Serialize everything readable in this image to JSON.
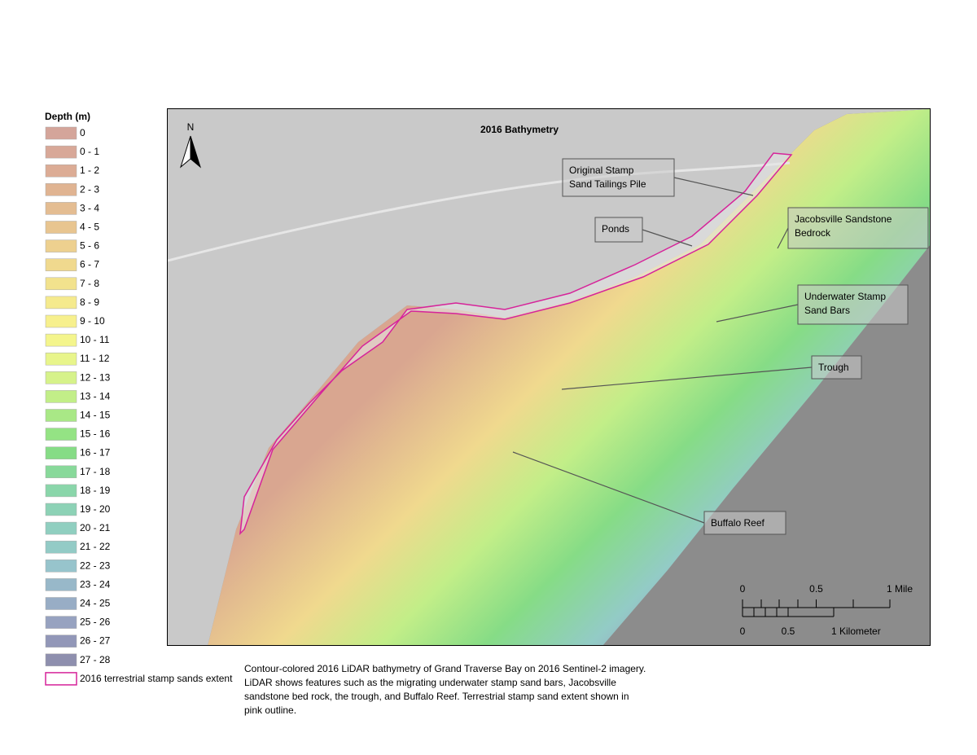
{
  "legend": {
    "title": "Depth (m)",
    "items": [
      {
        "label": "0",
        "color": "#d4a59a"
      },
      {
        "label": "0 - 1",
        "color": "#d8a898"
      },
      {
        "label": "1 - 2",
        "color": "#dcac95"
      },
      {
        "label": "2 - 3",
        "color": "#e0b492"
      },
      {
        "label": "3 - 4",
        "color": "#e4bd92"
      },
      {
        "label": "4 - 5",
        "color": "#e8c590"
      },
      {
        "label": "5 - 6",
        "color": "#edd08f"
      },
      {
        "label": "6 - 7",
        "color": "#f0d98e"
      },
      {
        "label": "7 - 8",
        "color": "#f2e28d"
      },
      {
        "label": "8 - 9",
        "color": "#f5ea8d"
      },
      {
        "label": "9 - 10",
        "color": "#f7f08d"
      },
      {
        "label": "10 - 11",
        "color": "#f4f58c"
      },
      {
        "label": "11 - 12",
        "color": "#e8f58b"
      },
      {
        "label": "12 - 13",
        "color": "#d6f28a"
      },
      {
        "label": "13 - 14",
        "color": "#c2ee88"
      },
      {
        "label": "14 - 15",
        "color": "#a9e886"
      },
      {
        "label": "15 - 16",
        "color": "#94e384"
      },
      {
        "label": "16 - 17",
        "color": "#86dc86"
      },
      {
        "label": "17 - 18",
        "color": "#88d99a"
      },
      {
        "label": "18 - 19",
        "color": "#8ad6aa"
      },
      {
        "label": "19 - 20",
        "color": "#8dd2b6"
      },
      {
        "label": "20 - 21",
        "color": "#90cfc0"
      },
      {
        "label": "21 - 22",
        "color": "#93cbc6"
      },
      {
        "label": "22 - 23",
        "color": "#97c4cc"
      },
      {
        "label": "23 - 24",
        "color": "#98b8c9"
      },
      {
        "label": "24 - 25",
        "color": "#98adc5"
      },
      {
        "label": "25 - 26",
        "color": "#97a2c0"
      },
      {
        "label": "26 - 27",
        "color": "#9297b8"
      },
      {
        "label": "27 - 28",
        "color": "#8e8fae"
      }
    ],
    "outline": {
      "label": "2016 terrestrial stamp sands extent",
      "color": "#d6249a"
    }
  },
  "map": {
    "title": "2016 Bathymetry",
    "north": "N",
    "annotations": [
      {
        "lines": [
          "Original Stamp",
          "Sand Tailings Pile"
        ]
      },
      {
        "lines": [
          "Ponds"
        ]
      },
      {
        "lines": [
          "Jacobsville Sandstone",
          " Bedrock"
        ]
      },
      {
        "lines": [
          "Underwater Stamp",
          "Sand Bars"
        ]
      },
      {
        "lines": [
          "Trough"
        ]
      },
      {
        "lines": [
          "Buffalo Reef"
        ]
      }
    ],
    "scale": {
      "miles": [
        "0",
        "0.5",
        "1 Mile"
      ],
      "kilometers": [
        "0",
        "0.5",
        "1 Kilometer"
      ]
    }
  },
  "caption": [
    "Contour-colored 2016 LiDAR bathymetry of Grand Traverse Bay on 2016 Sentinel-2 imagery.",
    "LiDAR shows features such as the migrating underwater stamp sand bars, Jacobsville",
    "sandstone bed rock, the trough, and Buffalo Reef. Terrestrial stamp sand extent shown in",
    " pink outline."
  ]
}
